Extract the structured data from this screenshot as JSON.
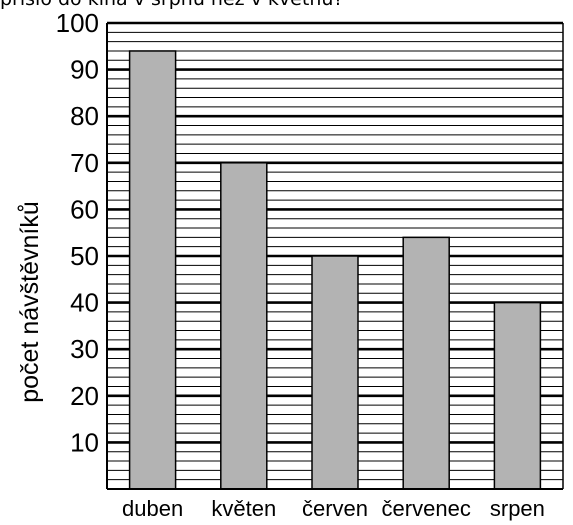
{
  "header": {
    "question_fragment": "přišlo do kina v srpnu než v květnu?"
  },
  "chart_data": {
    "type": "bar",
    "categories": [
      "duben",
      "květen",
      "červen",
      "červenec",
      "srpen"
    ],
    "values": [
      94,
      70,
      50,
      54,
      40
    ],
    "ylabel": "počet návštěvníků",
    "xlabel": "",
    "ylim": [
      0,
      100
    ],
    "yticks": [
      "10",
      "20",
      "30",
      "40",
      "50",
      "60",
      "70",
      "80",
      "90",
      "100"
    ],
    "minor_grid_step": 2,
    "grid": true,
    "colors": {
      "bar": "#b3b3b3",
      "axis": "#000000",
      "grid": "#000000"
    }
  }
}
